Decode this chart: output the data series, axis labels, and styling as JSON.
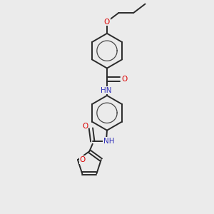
{
  "background_color": "#ebebeb",
  "bond_color": "#2a2a2a",
  "atom_colors": {
    "O": "#dd0000",
    "N": "#3333bb",
    "C": "#2a2a2a"
  },
  "figsize": [
    3.0,
    3.0
  ],
  "dpi": 100,
  "xlim": [
    0,
    10
  ],
  "ylim": [
    0,
    10
  ]
}
